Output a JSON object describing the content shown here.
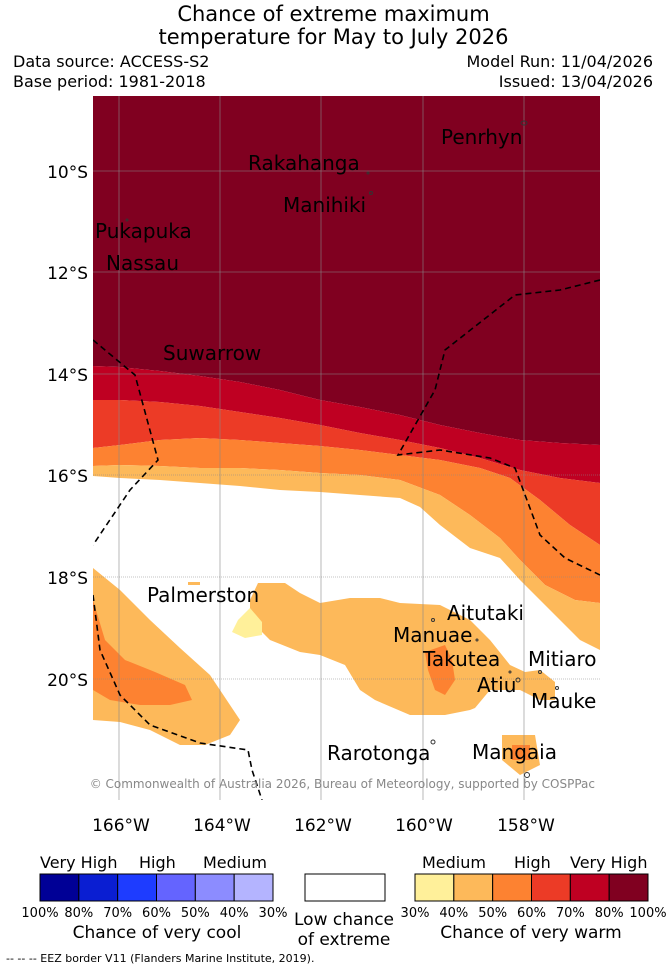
{
  "title": {
    "line1": "Chance of extreme maximum",
    "line2": "temperature for May to July 2026"
  },
  "meta": {
    "data_source": "Data source: ACCESS-S2",
    "base_period": "Base period: 1981-2018",
    "model_run": "Model Run: 11/04/2026",
    "issued": "Issued: 13/04/2026"
  },
  "map": {
    "y_ticks": [
      "10°S",
      "12°S",
      "14°S",
      "16°S",
      "18°S",
      "20°S"
    ],
    "x_ticks": [
      "166°W",
      "164°W",
      "162°W",
      "160°W",
      "158°W"
    ],
    "places": {
      "penrhyn": "Penrhyn",
      "rakahanga": "Rakahanga",
      "manihiki": "Manihiki",
      "pukapuka": "Pukapuka",
      "nassau": "Nassau",
      "suwarrow": "Suwarrow",
      "palmerston": "Palmerston",
      "aitutaki": "Aitutaki",
      "manuae": "Manuae",
      "takutea": "Takutea",
      "mitiaro": "Mitiaro",
      "atiu": "Atiu",
      "mauke": "Mauke",
      "rarotonga": "Rarotonga",
      "mangaia": "Mangaia"
    },
    "copyright": "© Commonwealth of Australia 2026, Bureau of Meteorology, supported by COSPPac"
  },
  "legend": {
    "cool": {
      "headers": [
        "Very High",
        "High",
        "Medium"
      ],
      "percents": [
        "100%",
        "80%",
        "70%",
        "60%",
        "50%",
        "40%",
        "30%"
      ],
      "colors": [
        "#000096",
        "#0a1ed2",
        "#1e3cff",
        "#6464ff",
        "#8c8cff",
        "#b4b4ff"
      ],
      "title": "Chance of very cool"
    },
    "neutral": {
      "line1": "Low chance",
      "line2": "of extreme",
      "color": "#ffffff"
    },
    "warm": {
      "headers": [
        "Medium",
        "High",
        "Very High"
      ],
      "percents": [
        "30%",
        "40%",
        "50%",
        "60%",
        "70%",
        "80%",
        "100%"
      ],
      "colors": [
        "#fff09a",
        "#fdb95a",
        "#fd8231",
        "#ec3b26",
        "#bf0022",
        "#800020"
      ],
      "title": "Chance of very warm"
    }
  },
  "footer": "--  --  -- EEZ border V11 (Flanders Marine Institute, 2019)."
}
